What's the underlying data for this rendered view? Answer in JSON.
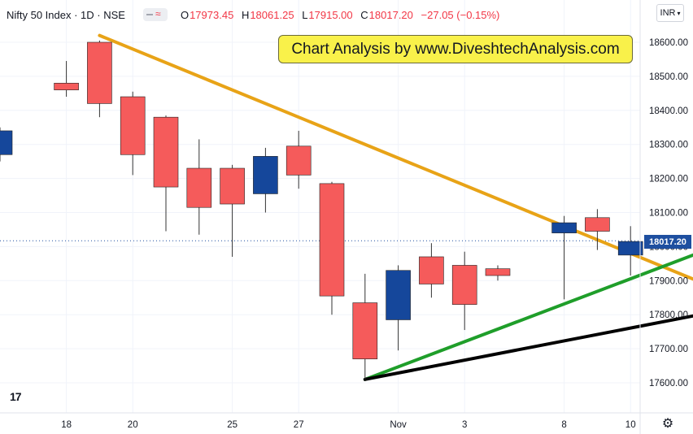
{
  "legend": {
    "title": "Nifty 50 Index · 1D · NSE",
    "open_label": "O",
    "open": "17973.45",
    "high_label": "H",
    "high": "18061.25",
    "low_label": "L",
    "low": "17915.00",
    "close_label": "C",
    "close": "18017.20",
    "change": "−27.05 (−0.15%)"
  },
  "currency": {
    "label": "INR",
    "icon": "chevron-down-icon"
  },
  "banner": {
    "text": "Chart Analysis by www.DiveshtechAnalysis.com"
  },
  "last_price": "18017.20",
  "chart_data": {
    "type": "candlestick",
    "title": "Nifty 50 Index · 1D · NSE",
    "ylim": [
      17530,
      18690
    ],
    "y_ticks": [
      17600,
      17700,
      17800,
      17900,
      18000,
      18100,
      18200,
      18300,
      18400,
      18500,
      18600
    ],
    "x_tick_labels": [
      "18",
      "20",
      "25",
      "27",
      "Nov",
      "3",
      "8",
      "10"
    ],
    "candles": [
      {
        "date": "2021-10-14",
        "open": 18270,
        "high": 18350,
        "low": 18250,
        "close": 18340
      },
      {
        "date": "2021-10-18",
        "open": 18480,
        "high": 18545,
        "low": 18440,
        "close": 18460
      },
      {
        "date": "2021-10-19",
        "open": 18600,
        "high": 18605,
        "low": 18380,
        "close": 18420
      },
      {
        "date": "2021-10-20",
        "open": 18440,
        "high": 18455,
        "low": 18210,
        "close": 18270
      },
      {
        "date": "2021-10-21",
        "open": 18380,
        "high": 18385,
        "low": 18045,
        "close": 18175
      },
      {
        "date": "2021-10-22",
        "open": 18230,
        "high": 18315,
        "low": 18035,
        "close": 18115
      },
      {
        "date": "2021-10-25",
        "open": 18230,
        "high": 18240,
        "low": 17970,
        "close": 18125
      },
      {
        "date": "2021-10-26",
        "open": 18155,
        "high": 18290,
        "low": 18100,
        "close": 18265
      },
      {
        "date": "2021-10-27",
        "open": 18295,
        "high": 18340,
        "low": 18170,
        "close": 18210
      },
      {
        "date": "2021-10-28",
        "open": 18185,
        "high": 18190,
        "low": 17800,
        "close": 17855
      },
      {
        "date": "2021-10-29",
        "open": 17835,
        "high": 17920,
        "low": 17610,
        "close": 17670
      },
      {
        "date": "2021-11-01",
        "open": 17785,
        "high": 17945,
        "low": 17695,
        "close": 17930
      },
      {
        "date": "2021-11-02",
        "open": 17970,
        "high": 18010,
        "low": 17850,
        "close": 17890
      },
      {
        "date": "2021-11-03",
        "open": 17945,
        "high": 17985,
        "low": 17755,
        "close": 17830
      },
      {
        "date": "2021-11-04",
        "open": 17935,
        "high": 17945,
        "low": 17900,
        "close": 17915
      },
      {
        "date": "2021-11-08",
        "open": 18040,
        "high": 18090,
        "low": 17845,
        "close": 18070
      },
      {
        "date": "2021-11-09",
        "open": 18085,
        "high": 18110,
        "low": 17990,
        "close": 18045
      },
      {
        "date": "2021-11-10",
        "open": 17975,
        "high": 18060,
        "low": 17915,
        "close": 18015
      }
    ],
    "colors": {
      "up": "#15479b",
      "down": "#f55b5b",
      "wick": "#333333"
    },
    "trendlines": [
      {
        "color": "#e8a317",
        "from": [
          "2021-10-19",
          18620
        ],
        "to": [
          "2021-11-15",
          17860
        ]
      },
      {
        "color": "#1f9e2a",
        "from": [
          "2021-10-29",
          17610
        ],
        "to": [
          "2021-11-17",
          18090
        ]
      },
      {
        "color": "#000000",
        "from": [
          "2021-10-29",
          17610
        ],
        "to": [
          "2021-11-17",
          17855
        ]
      }
    ]
  }
}
